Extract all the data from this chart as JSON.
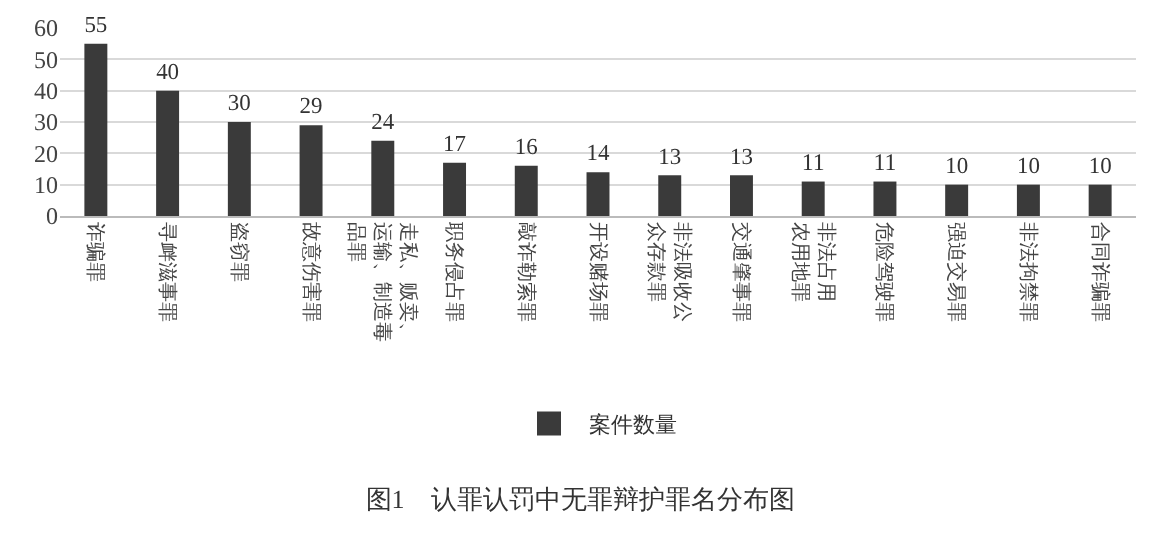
{
  "chart_data": {
    "type": "bar",
    "title": "图1　认罪认罚中无罪辩护罪名分布图",
    "categories": [
      "诈骗罪",
      "寻衅滋事罪",
      "盗窃罪",
      "故意伤害罪",
      "走私、贩卖、运输、制造毒品罪",
      "职务侵占罪",
      "敲诈勒索罪",
      "开设赌场罪",
      "非法吸收公众存款罪",
      "交通肇事罪",
      "非法占用农用地罪",
      "危险驾驶罪",
      "强迫交易罪",
      "非法拘禁罪",
      "合同诈骗罪"
    ],
    "series": [
      {
        "name": "案件数量",
        "color": "#3a3a3a",
        "values": [
          55,
          40,
          30,
          29,
          24,
          17,
          16,
          14,
          13,
          13,
          11,
          11,
          10,
          10,
          10
        ]
      }
    ],
    "ylim": [
      0,
      60
    ],
    "yticks": [
      0,
      10,
      20,
      30,
      40,
      50,
      60
    ],
    "grid": "y",
    "legend": "bottom",
    "data_labels": true
  }
}
